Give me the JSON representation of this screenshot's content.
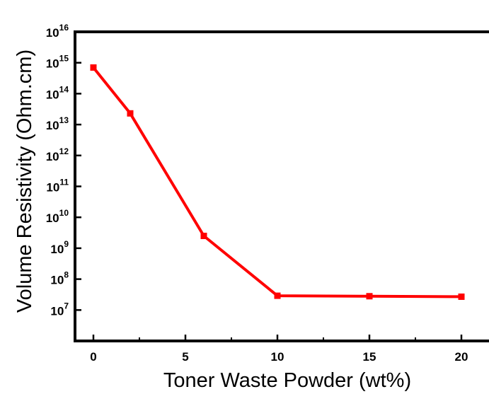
{
  "chart_data": {
    "type": "line",
    "title": "",
    "xlabel": "Toner Waste Powder (wt%)",
    "ylabel": "Volume Resistivity (Ohm.cm)",
    "xlim": [
      -1,
      21.5
    ],
    "ylim": [
      1000000.0,
      1e+16
    ],
    "yscale": "log",
    "xticks": [
      0,
      5,
      10,
      15,
      20
    ],
    "xtick_labels": [
      "0",
      "5",
      "10",
      "15",
      "20"
    ],
    "yticks": [
      10000000.0,
      100000000.0,
      1000000000.0,
      10000000000.0,
      100000000000.0,
      1000000000000.0,
      10000000000000.0,
      100000000000000.0,
      1000000000000000.0,
      1e+16
    ],
    "ytick_labels": [
      {
        "base": "10",
        "exp": "7"
      },
      {
        "base": "10",
        "exp": "8"
      },
      {
        "base": "10",
        "exp": "9"
      },
      {
        "base": "10",
        "exp": "10"
      },
      {
        "base": "10",
        "exp": "11"
      },
      {
        "base": "10",
        "exp": "12"
      },
      {
        "base": "10",
        "exp": "13"
      },
      {
        "base": "10",
        "exp": "14"
      },
      {
        "base": "10",
        "exp": "15"
      },
      {
        "base": "10",
        "exp": "16"
      }
    ],
    "grid": false,
    "legend": "none",
    "series": [
      {
        "color": "#ff0000",
        "marker": "square",
        "x": [
          0,
          2,
          6,
          10,
          15,
          20
        ],
        "y": [
          700000000000000.0,
          23000000000000.0,
          2500000000.0,
          29000000.0,
          28000000.0,
          27000000.0
        ]
      }
    ]
  }
}
